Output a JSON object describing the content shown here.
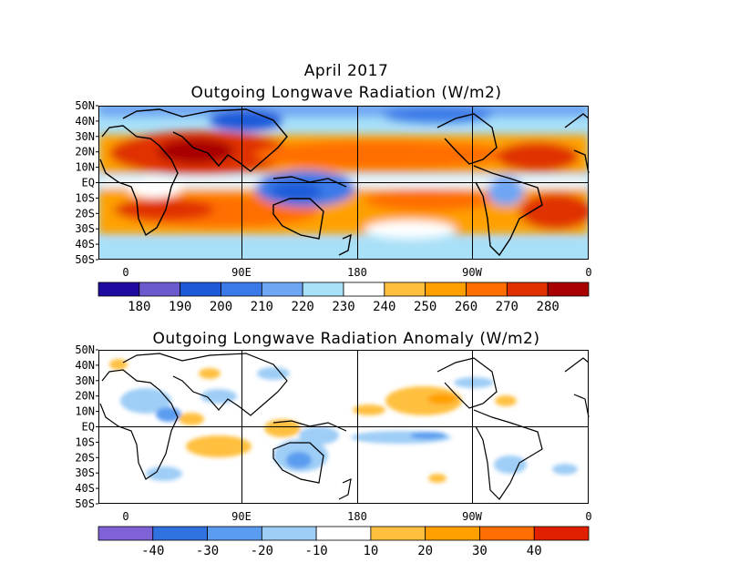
{
  "titles": {
    "main": "April 2017",
    "top": "Outgoing Longwave Radiation (W/m2)",
    "bottom": "Outgoing Longwave Radiation Anomaly (W/m2)"
  },
  "lat_labels": [
    "50N",
    "40N",
    "30N",
    "20N",
    "10N",
    "EQ",
    "10S",
    "20S",
    "30S",
    "40S",
    "50S"
  ],
  "lon_labels": [
    "0",
    "90E",
    "180",
    "90W",
    "0"
  ],
  "top_colorbar": {
    "labels": [
      "180",
      "190",
      "200",
      "210",
      "220",
      "230",
      "240",
      "250",
      "260",
      "270",
      "280"
    ],
    "colors": [
      "#1f0aa0",
      "#6a5acd",
      "#1e5ad8",
      "#3a7ae8",
      "#6ea6f4",
      "#a8e0f8",
      "#ffffff",
      "#ffc040",
      "#ffa000",
      "#ff6e00",
      "#e03000",
      "#a80000"
    ]
  },
  "bottom_colorbar": {
    "labels": [
      "-40",
      "-30",
      "-20",
      "-10",
      "10",
      "20",
      "30",
      "40"
    ],
    "colors": [
      "#7e62d6",
      "#2f72e0",
      "#5a9cf0",
      "#9ecdf6",
      "#ffffff",
      "#ffc040",
      "#ffa000",
      "#ff6e00",
      "#e02000"
    ]
  }
}
